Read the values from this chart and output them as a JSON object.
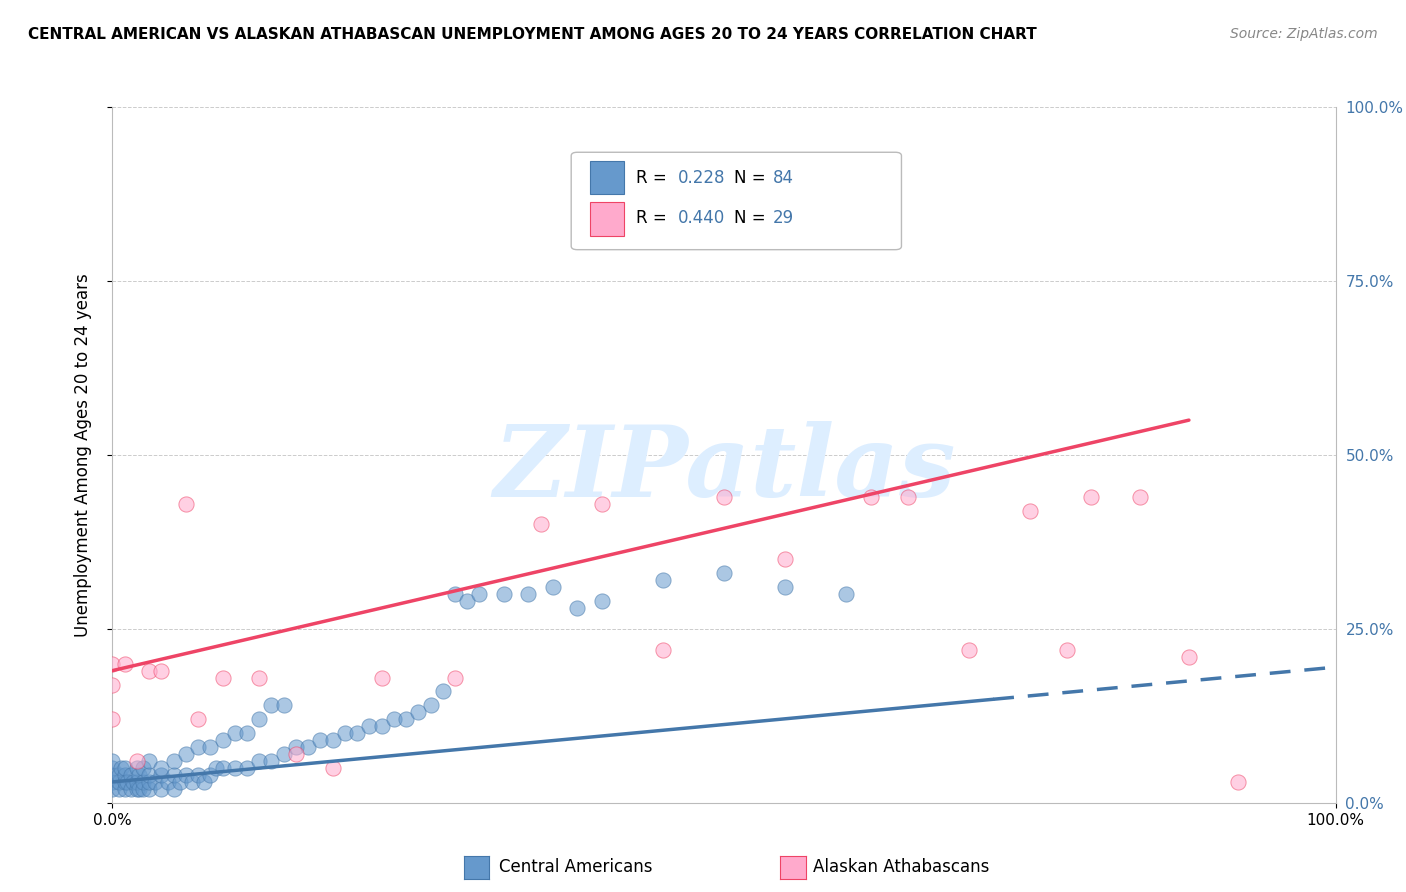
{
  "title": "CENTRAL AMERICAN VS ALASKAN ATHABASCAN UNEMPLOYMENT AMONG AGES 20 TO 24 YEARS CORRELATION CHART",
  "source": "Source: ZipAtlas.com",
  "ylabel": "Unemployment Among Ages 20 to 24 years",
  "ytick_values": [
    0.0,
    0.25,
    0.5,
    0.75,
    1.0
  ],
  "ytick_labels": [
    "0.0%",
    "25.0%",
    "50.0%",
    "75.0%",
    "100.0%"
  ],
  "xtick_values": [
    0.0,
    1.0
  ],
  "xtick_labels": [
    "0.0%",
    "100.0%"
  ],
  "legend_R_blue": "0.228",
  "legend_N_blue": "84",
  "legend_R_pink": "0.440",
  "legend_N_pink": "29",
  "blue_scatter_x": [
    0.0,
    0.0,
    0.0,
    0.0,
    0.0,
    0.005,
    0.005,
    0.005,
    0.007,
    0.01,
    0.01,
    0.01,
    0.01,
    0.012,
    0.015,
    0.015,
    0.017,
    0.02,
    0.02,
    0.02,
    0.022,
    0.022,
    0.025,
    0.025,
    0.025,
    0.03,
    0.03,
    0.03,
    0.03,
    0.035,
    0.04,
    0.04,
    0.04,
    0.045,
    0.05,
    0.05,
    0.05,
    0.055,
    0.06,
    0.06,
    0.065,
    0.07,
    0.07,
    0.075,
    0.08,
    0.08,
    0.085,
    0.09,
    0.09,
    0.1,
    0.1,
    0.11,
    0.11,
    0.12,
    0.12,
    0.13,
    0.13,
    0.14,
    0.14,
    0.15,
    0.16,
    0.17,
    0.18,
    0.19,
    0.2,
    0.21,
    0.22,
    0.23,
    0.24,
    0.25,
    0.26,
    0.27,
    0.28,
    0.29,
    0.3,
    0.32,
    0.34,
    0.36,
    0.38,
    0.4,
    0.45,
    0.5,
    0.55,
    0.6
  ],
  "blue_scatter_y": [
    0.02,
    0.03,
    0.04,
    0.05,
    0.06,
    0.02,
    0.03,
    0.04,
    0.05,
    0.02,
    0.03,
    0.04,
    0.05,
    0.03,
    0.02,
    0.04,
    0.03,
    0.02,
    0.03,
    0.05,
    0.02,
    0.04,
    0.02,
    0.03,
    0.05,
    0.02,
    0.03,
    0.04,
    0.06,
    0.03,
    0.02,
    0.04,
    0.05,
    0.03,
    0.02,
    0.04,
    0.06,
    0.03,
    0.04,
    0.07,
    0.03,
    0.04,
    0.08,
    0.03,
    0.04,
    0.08,
    0.05,
    0.05,
    0.09,
    0.05,
    0.1,
    0.05,
    0.1,
    0.06,
    0.12,
    0.06,
    0.14,
    0.07,
    0.14,
    0.08,
    0.08,
    0.09,
    0.09,
    0.1,
    0.1,
    0.11,
    0.11,
    0.12,
    0.12,
    0.13,
    0.14,
    0.16,
    0.3,
    0.29,
    0.3,
    0.3,
    0.3,
    0.31,
    0.28,
    0.29,
    0.32,
    0.33,
    0.31,
    0.3
  ],
  "pink_scatter_x": [
    0.0,
    0.0,
    0.0,
    0.01,
    0.02,
    0.03,
    0.04,
    0.06,
    0.07,
    0.09,
    0.12,
    0.15,
    0.18,
    0.22,
    0.28,
    0.35,
    0.4,
    0.45,
    0.5,
    0.55,
    0.62,
    0.65,
    0.7,
    0.75,
    0.78,
    0.8,
    0.84,
    0.88,
    0.92
  ],
  "pink_scatter_y": [
    0.12,
    0.17,
    0.2,
    0.2,
    0.06,
    0.19,
    0.19,
    0.43,
    0.12,
    0.18,
    0.18,
    0.07,
    0.05,
    0.18,
    0.18,
    0.4,
    0.43,
    0.22,
    0.44,
    0.35,
    0.44,
    0.44,
    0.22,
    0.42,
    0.22,
    0.44,
    0.44,
    0.21,
    0.03
  ],
  "blue_trend_x0": 0.0,
  "blue_trend_y0": 0.03,
  "blue_trend_x_solid_end": 0.72,
  "blue_trend_x1": 1.0,
  "blue_trend_y1": 0.195,
  "pink_trend_x0": 0.0,
  "pink_trend_y0": 0.19,
  "pink_trend_x1": 0.88,
  "pink_trend_y1": 0.55,
  "blue_scatter_color": "#6699cc",
  "blue_scatter_edge": "#4477aa",
  "pink_scatter_color": "#ffaacc",
  "pink_scatter_edge": "#ee4466",
  "blue_line_color": "#4477aa",
  "pink_line_color": "#ee4466",
  "right_tick_color": "#4477aa",
  "grid_color": "#cccccc",
  "watermark_text": "ZIPatlas",
  "watermark_color": "#ddeeff",
  "bg_color": "#ffffff",
  "title_fontsize": 11,
  "source_fontsize": 10,
  "tick_fontsize": 11,
  "ylabel_fontsize": 12
}
